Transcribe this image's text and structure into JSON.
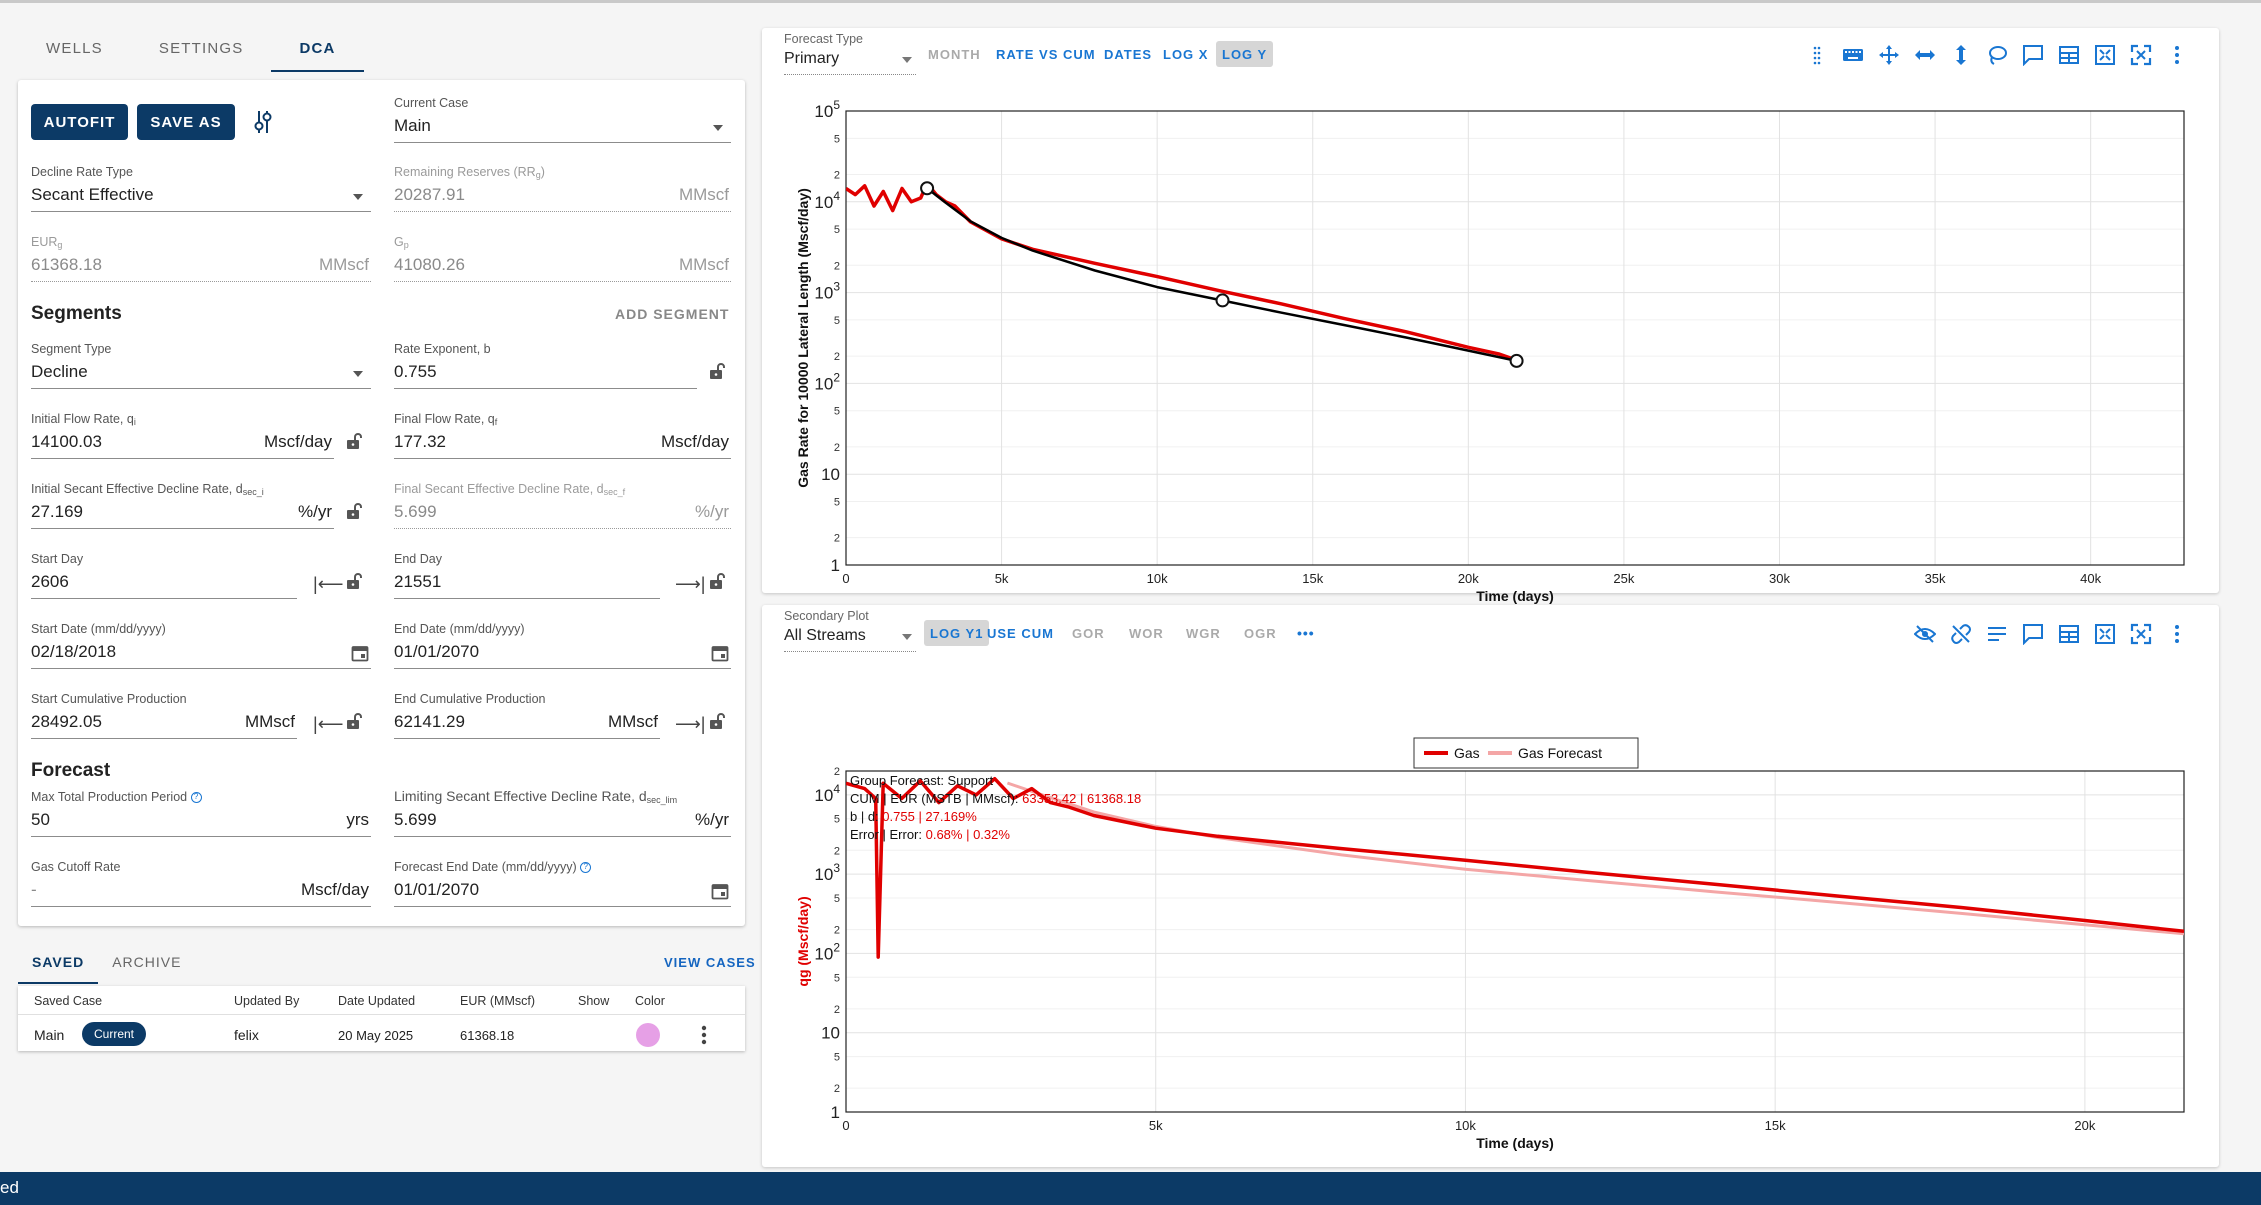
{
  "tabs": [
    {
      "label": "WELLS"
    },
    {
      "label": "SETTINGS"
    },
    {
      "label": "DCA"
    }
  ],
  "toolbar": {
    "autofit_label": "AUTOFIT",
    "save_as_label": "SAVE AS"
  },
  "form": {
    "current_case": {
      "label": "Current Case",
      "value": "Main"
    },
    "decline_rate_type": {
      "label": "Decline Rate Type",
      "value": "Secant Effective"
    },
    "remaining_reserves": {
      "label": "Remaining Reserves (RR",
      "label_sub": "g",
      "label_end": ")",
      "value": "20287.91",
      "unit": "MMscf"
    },
    "eur": {
      "label": "EUR",
      "label_sub": "g",
      "value": "61368.18",
      "unit": "MMscf"
    },
    "gp": {
      "label": "G",
      "label_sub": "p",
      "value": "41080.26",
      "unit": "MMscf"
    }
  },
  "segments": {
    "title": "Segments",
    "add_label": "ADD SEGMENT",
    "segment_type": {
      "label": "Segment Type",
      "value": "Decline"
    },
    "rate_exponent": {
      "label": "Rate Exponent, b",
      "value": "0.755"
    },
    "initial_rate": {
      "label": "Initial Flow Rate, q",
      "label_sub": "i",
      "value": "14100.03",
      "unit": "Mscf/day"
    },
    "final_rate": {
      "label": "Final Flow Rate, q",
      "label_sub": "f",
      "value": "177.32",
      "unit": "Mscf/day"
    },
    "initial_decline": {
      "label": "Initial Secant Effective Decline Rate, d",
      "label_sub": "sec_i",
      "value": "27.169",
      "unit": "%/yr"
    },
    "final_decline": {
      "label": "Final Secant Effective Decline Rate, d",
      "label_sub": "sec_f",
      "value": "5.699",
      "unit": "%/yr"
    },
    "start_day": {
      "label": "Start Day",
      "value": "2606"
    },
    "end_day": {
      "label": "End Day",
      "value": "21551"
    },
    "start_date": {
      "label": "Start Date (mm/dd/yyyy)",
      "value": "02/18/2018"
    },
    "end_date": {
      "label": "End Date (mm/dd/yyyy)",
      "value": "01/01/2070"
    },
    "start_cum": {
      "label": "Start Cumulative Production",
      "value": "28492.05",
      "unit": "MMscf"
    },
    "end_cum": {
      "label": "End Cumulative Production",
      "value": "62141.29",
      "unit": "MMscf"
    }
  },
  "forecast": {
    "title": "Forecast",
    "max_period": {
      "label": "Max Total Production Period",
      "value": "50",
      "unit": "yrs"
    },
    "limit_decline": {
      "label": "Limiting Secant Effective Decline Rate, d",
      "label_sub": "sec_lim",
      "value": "5.699",
      "unit": "%/yr"
    },
    "gas_cutoff": {
      "label": "Gas Cutoff Rate",
      "value": "-",
      "unit": "Mscf/day"
    },
    "end_date": {
      "label": "Forecast End Date (mm/dd/yyyy)",
      "value": "01/01/2070"
    }
  },
  "saved": {
    "tabs": [
      {
        "label": "SAVED"
      },
      {
        "label": "ARCHIVE"
      }
    ],
    "view_cases_label": "VIEW CASES",
    "headers": [
      "Saved Case",
      "Updated By",
      "Date Updated",
      "EUR (MMscf)",
      "Show",
      "Color"
    ],
    "rows": [
      {
        "case": "Main",
        "badge": "Current",
        "updated_by": "felix",
        "date": "20 May 2025",
        "eur": "61368.18",
        "color": "#e6a0e6"
      }
    ]
  },
  "top_plot": {
    "select_label": "Forecast Type",
    "select_value": "Primary",
    "buttons": [
      {
        "label": "MONTH",
        "state": "disabled"
      },
      {
        "label": "RATE VS CUM",
        "state": "normal"
      },
      {
        "label": "DATES",
        "state": "normal"
      },
      {
        "label": "LOG X",
        "state": "normal"
      },
      {
        "label": "LOG Y",
        "state": "active"
      }
    ],
    "icons": [
      "drag-handle-icon",
      "keyboard-icon",
      "move-icon",
      "horizontal-arrows-icon",
      "vertical-arrows-icon",
      "lasso-icon",
      "comment-icon",
      "table-icon",
      "fit-icon",
      "fullscreen-icon",
      "more-vert-icon"
    ]
  },
  "bottom_plot": {
    "select_label": "Secondary Plot",
    "select_value": "All Streams",
    "buttons": [
      {
        "label": "LOG Y1",
        "state": "active"
      },
      {
        "label": "USE CUM",
        "state": "normal"
      },
      {
        "label": "GOR",
        "state": "disabled"
      },
      {
        "label": "WOR",
        "state": "disabled"
      },
      {
        "label": "WGR",
        "state": "disabled"
      },
      {
        "label": "OGR",
        "state": "disabled"
      },
      {
        "label": "•••",
        "state": "normal"
      }
    ],
    "icons": [
      "eye-off-icon",
      "link-off-icon",
      "notes-icon",
      "comment-icon",
      "table-icon",
      "fit-icon",
      "fullscreen-icon",
      "more-vert-icon"
    ]
  },
  "chart_data": [
    {
      "type": "line",
      "xlabel": "Time (days)",
      "ylabel": "Gas Rate for 10000 Lateral Length (Mscf/day)",
      "xlim": [
        0,
        43000
      ],
      "ylim": [
        1,
        100000
      ],
      "yscale": "log",
      "grid": true,
      "x_ticks": [
        "0",
        "5k",
        "10k",
        "15k",
        "20k",
        "25k",
        "30k",
        "35k",
        "40k"
      ],
      "series": [
        {
          "color": "#e00000",
          "x": [
            0,
            300,
            600,
            900,
            1200,
            1500,
            1800,
            2100,
            2400,
            2606,
            2900,
            3200,
            3500,
            4000,
            5000,
            6000,
            8000,
            10000,
            12000,
            14000,
            16000,
            18000,
            20000,
            21000,
            21551
          ],
          "y": [
            14000,
            12000,
            15000,
            9000,
            13000,
            8000,
            14000,
            10000,
            11000,
            16000,
            12000,
            10000,
            9000,
            6000,
            3900,
            3000,
            2100,
            1500,
            1050,
            750,
            520,
            370,
            250,
            210,
            180
          ]
        },
        {
          "color": "#000000",
          "x": [
            2606,
            3200,
            4000,
            5000,
            6000,
            8000,
            10000,
            12000,
            14000,
            16000,
            18000,
            20000,
            21551
          ],
          "y": [
            14100,
            9800,
            6100,
            4000,
            2900,
            1750,
            1150,
            830,
            600,
            440,
            320,
            230,
            177
          ]
        }
      ],
      "markers": [
        {
          "x": 2606,
          "y": 14100
        },
        {
          "x": 12100,
          "y": 820
        },
        {
          "x": 21551,
          "y": 177
        }
      ]
    },
    {
      "type": "line",
      "xlabel": "Time (days)",
      "ylabel": "qg (Mscf/day)",
      "xlim": [
        0,
        21600
      ],
      "ylim": [
        1,
        20000
      ],
      "yscale": "log",
      "grid": true,
      "x_ticks": [
        "0",
        "5k",
        "10k",
        "15k",
        "20k"
      ],
      "legend": "top-center",
      "series": [
        {
          "name": "Gas",
          "color": "#e00000",
          "x": [
            0,
            300,
            480,
            520,
            600,
            900,
            1200,
            1500,
            1800,
            2100,
            2400,
            2700,
            3000,
            3300,
            3600,
            4000,
            5000,
            6000,
            8000,
            10000,
            12000,
            14000,
            16000,
            18000,
            20000,
            21600
          ],
          "y": [
            14000,
            12000,
            9000,
            90,
            14000,
            9000,
            15000,
            8000,
            13000,
            10000,
            16000,
            9000,
            12000,
            8000,
            7000,
            5500,
            3800,
            3000,
            2100,
            1500,
            1050,
            750,
            530,
            380,
            260,
            190
          ]
        },
        {
          "name": "Gas Forecast",
          "color": "#f4a6a6",
          "x": [
            2606,
            3200,
            4000,
            5000,
            6000,
            8000,
            10000,
            12000,
            14000,
            16000,
            18000,
            20000,
            21600
          ],
          "y": [
            14100,
            9800,
            6100,
            4000,
            2900,
            1750,
            1150,
            830,
            600,
            440,
            320,
            230,
            177
          ]
        }
      ],
      "annotation": {
        "line1": "Group Forecast: Support",
        "line2_label": "CUM | EUR (MSTB | MMscf): ",
        "line2_value": "63353.42 | 61368.18",
        "line3_label": "b | d: ",
        "line3_value": "0.755 | 27.169%",
        "line4_label": "Error | Error: ",
        "line4_value": "0.68% | 0.32%"
      }
    }
  ],
  "status_text": "ed"
}
